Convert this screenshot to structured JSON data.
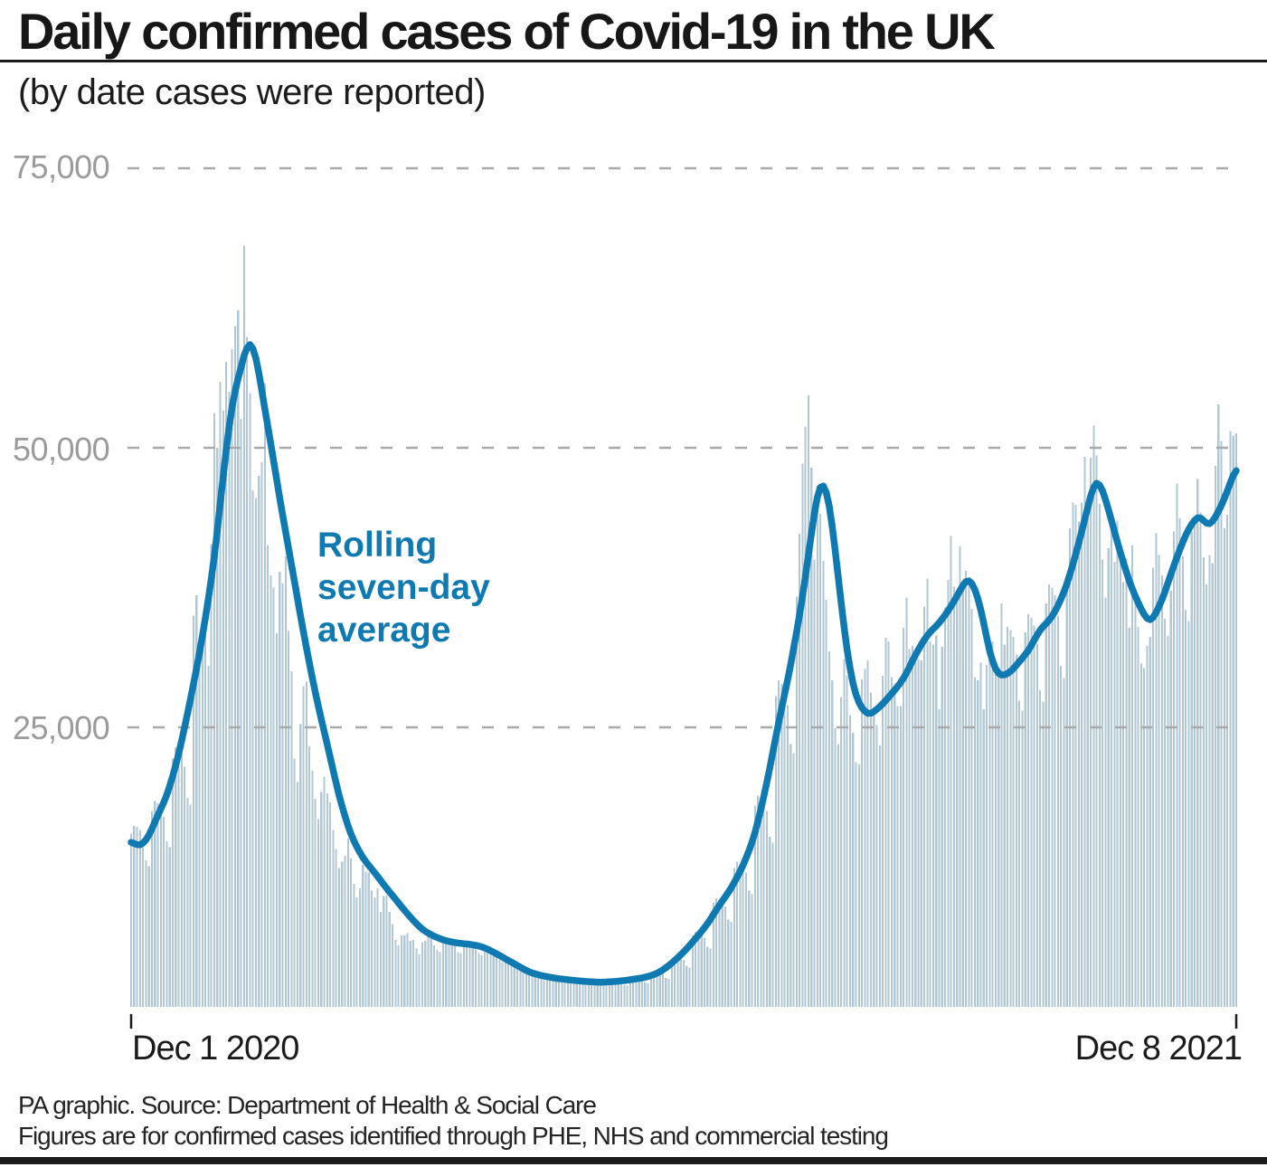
{
  "header": {
    "title": "Daily confirmed cases of Covid-19 in the UK",
    "subtitle": "(by date cases were reported)"
  },
  "annotation": {
    "text": "Rolling\nseven-day\naverage"
  },
  "axes": {
    "y_ticks": [
      "75,000",
      "50,000",
      "25,000"
    ],
    "x_start": "Dec 1 2020",
    "x_end": "Dec 8 2021"
  },
  "footer": {
    "line1": "PA graphic. Source: Department of Health & Social Care",
    "line2": "Figures are for confirmed cases identified through PHE, NHS and commercial testing"
  },
  "colors": {
    "bar": "#b2c7d5",
    "line": "#0f79b2",
    "grid": "#a9a9a9",
    "axis_text": "#999b9d",
    "text": "#1b1b1b"
  },
  "chart_data": {
    "type": "bar",
    "title": "Daily confirmed cases of Covid-19 in the UK",
    "subtitle": "(by date cases were reported)",
    "x_start_label": "Dec 1 2020",
    "x_end_label": "Dec 8 2021",
    "n_days": 373,
    "y_axis": {
      "min": 0,
      "top": 75000,
      "gridlines": [
        75000,
        50000,
        25000
      ],
      "grid_style": "dashed"
    },
    "series_names": [
      "Daily confirmed cases",
      "Rolling seven-day average"
    ],
    "daily_values": [
      15500,
      16200,
      16100,
      15800,
      15000,
      13100,
      12600,
      17500,
      18400,
      18200,
      17900,
      17000,
      14800,
      14300,
      22200,
      23200,
      23000,
      22600,
      21500,
      18700,
      18100,
      35000,
      36800,
      33000,
      32700,
      34700,
      30500,
      41400,
      53100,
      50000,
      55900,
      53300,
      57700,
      55000,
      58800,
      60900,
      62300,
      52600,
      68100,
      59900,
      54900,
      46200,
      45500,
      47500,
      48700,
      55800,
      41300,
      38600,
      37500,
      33400,
      38900,
      37900,
      40300,
      33600,
      30000,
      22200,
      20100,
      25300,
      28700,
      29100,
      23300,
      21100,
      18600,
      16800,
      19200,
      20600,
      19100,
      18300,
      15800,
      14100,
      12400,
      13000,
      13500,
      15100,
      13300,
      11000,
      9800,
      10600,
      12700,
      12100,
      12000,
      10400,
      9800,
      10600,
      8500,
      9900,
      10000,
      8500,
      7400,
      6000,
      5500,
      6400,
      6400,
      6600,
      5900,
      6000,
      5200,
      4700,
      5800,
      5900,
      6600,
      6600,
      5500,
      5100,
      4900,
      5800,
      6100,
      6100,
      5900,
      5700,
      4900,
      4800,
      5700,
      5900,
      5900,
      5800,
      5500,
      4800,
      4600,
      4900,
      5200,
      5100,
      5000,
      4800,
      4200,
      4000,
      4100,
      4300,
      4300,
      4200,
      4000,
      3500,
      3400,
      3000,
      3100,
      3100,
      3000,
      2900,
      2500,
      2400,
      2600,
      2800,
      2700,
      2700,
      2600,
      2200,
      2100,
      2500,
      2600,
      2600,
      2500,
      2400,
      2100,
      2000,
      2300,
      2400,
      2400,
      2400,
      2300,
      2000,
      1900,
      2300,
      2400,
      2400,
      2400,
      2300,
      2000,
      1900,
      2600,
      2700,
      2700,
      2600,
      2500,
      2200,
      2100,
      3100,
      3200,
      3200,
      3200,
      3000,
      2600,
      2500,
      4300,
      4500,
      4500,
      4400,
      4200,
      3700,
      3500,
      6400,
      6700,
      6600,
      6500,
      6200,
      5400,
      5200,
      9300,
      9700,
      9600,
      9500,
      9000,
      7800,
      7600,
      12400,
      13000,
      12800,
      12600,
      12000,
      10400,
      10100,
      18000,
      18900,
      18700,
      18400,
      17500,
      15200,
      14700,
      27800,
      29200,
      28900,
      28400,
      27000,
      23500,
      22700,
      36700,
      42300,
      48600,
      51900,
      54700,
      48200,
      40000,
      46600,
      44100,
      39900,
      36400,
      31800,
      29200,
      24900,
      23500,
      27700,
      31100,
      29600,
      26100,
      24500,
      21900,
      21700,
      29300,
      30200,
      31000,
      28100,
      26100,
      25200,
      23400,
      29600,
      33000,
      32700,
      29500,
      28000,
      26900,
      26900,
      33900,
      36600,
      32000,
      32300,
      31900,
      31100,
      31000,
      35800,
      38300,
      32700,
      32400,
      33200,
      26600,
      32200,
      35700,
      38200,
      42100,
      37600,
      37000,
      41200,
      37500,
      39000,
      38000,
      35600,
      29500,
      29200,
      30800,
      26600,
      30600,
      31500,
      32700,
      30100,
      29600,
      36100,
      32400,
      34000,
      33700,
      33100,
      31500,
      27400,
      26500,
      33500,
      35100,
      34800,
      34100,
      32500,
      28300,
      27300,
      36100,
      37800,
      37500,
      36800,
      35000,
      30500,
      29400,
      38500,
      42800,
      45100,
      44900,
      43400,
      45100,
      49200,
      43700,
      49100,
      52000,
      49300,
      45000,
      40000,
      36600,
      41000,
      43900,
      39800,
      43500,
      41300,
      38000,
      40100,
      33900,
      41300,
      37300,
      34000,
      30700,
      30300,
      32300,
      33100,
      39300,
      42400,
      40400,
      38600,
      34700,
      33200,
      37200,
      42500,
      46800,
      43700,
      40300,
      35500,
      34500,
      42500,
      43700,
      47200,
      44200,
      40200,
      37800,
      40400,
      39700,
      48400,
      53900,
      50600,
      42800,
      44000,
      51500,
      51100,
      51300
    ],
    "avg_points": [
      [
        0,
        14800
      ],
      [
        3,
        14300
      ],
      [
        6,
        15200
      ],
      [
        8,
        16600
      ],
      [
        12,
        18800
      ],
      [
        16,
        22500
      ],
      [
        20,
        27500
      ],
      [
        24,
        33000
      ],
      [
        28,
        40000
      ],
      [
        32,
        50000
      ],
      [
        34,
        54000
      ],
      [
        36,
        56600
      ],
      [
        37,
        56400
      ],
      [
        38,
        58800
      ],
      [
        40,
        59700
      ],
      [
        42,
        58500
      ],
      [
        44,
        55000
      ],
      [
        46,
        52000
      ],
      [
        50,
        45500
      ],
      [
        54,
        39500
      ],
      [
        58,
        33500
      ],
      [
        62,
        28000
      ],
      [
        66,
        23500
      ],
      [
        70,
        18800
      ],
      [
        74,
        15300
      ],
      [
        78,
        13300
      ],
      [
        82,
        12000
      ],
      [
        86,
        10600
      ],
      [
        90,
        9300
      ],
      [
        94,
        8000
      ],
      [
        98,
        6900
      ],
      [
        102,
        6300
      ],
      [
        106,
        5900
      ],
      [
        110,
        5700
      ],
      [
        114,
        5600
      ],
      [
        118,
        5400
      ],
      [
        122,
        4900
      ],
      [
        126,
        4300
      ],
      [
        130,
        3700
      ],
      [
        134,
        3100
      ],
      [
        138,
        2800
      ],
      [
        142,
        2600
      ],
      [
        146,
        2450
      ],
      [
        150,
        2350
      ],
      [
        154,
        2250
      ],
      [
        158,
        2200
      ],
      [
        162,
        2250
      ],
      [
        166,
        2350
      ],
      [
        170,
        2500
      ],
      [
        174,
        2700
      ],
      [
        178,
        3100
      ],
      [
        182,
        3900
      ],
      [
        186,
        4900
      ],
      [
        190,
        6100
      ],
      [
        194,
        7400
      ],
      [
        198,
        9100
      ],
      [
        202,
        10600
      ],
      [
        206,
        12600
      ],
      [
        210,
        15400
      ],
      [
        214,
        20000
      ],
      [
        218,
        25500
      ],
      [
        222,
        30500
      ],
      [
        226,
        36500
      ],
      [
        229,
        42500
      ],
      [
        232,
        47500
      ],
      [
        235,
        45500
      ],
      [
        238,
        38500
      ],
      [
        241,
        31500
      ],
      [
        244,
        27500
      ],
      [
        248,
        26000
      ],
      [
        252,
        26800
      ],
      [
        256,
        28000
      ],
      [
        260,
        29300
      ],
      [
        264,
        31500
      ],
      [
        268,
        33300
      ],
      [
        272,
        34300
      ],
      [
        276,
        35800
      ],
      [
        279,
        37200
      ],
      [
        281,
        38300
      ],
      [
        283,
        38200
      ],
      [
        286,
        35800
      ],
      [
        289,
        31500
      ],
      [
        292,
        29500
      ],
      [
        296,
        29900
      ],
      [
        299,
        30900
      ],
      [
        302,
        31800
      ],
      [
        306,
        33800
      ],
      [
        310,
        34800
      ],
      [
        314,
        37000
      ],
      [
        317,
        39500
      ],
      [
        320,
        42500
      ],
      [
        323,
        45800
      ],
      [
        325,
        47500
      ],
      [
        328,
        45500
      ],
      [
        332,
        41500
      ],
      [
        336,
        38000
      ],
      [
        340,
        35500
      ],
      [
        343,
        34200
      ],
      [
        347,
        36300
      ],
      [
        351,
        39500
      ],
      [
        355,
        42300
      ],
      [
        358,
        43600
      ],
      [
        360,
        44100
      ],
      [
        362,
        42900
      ],
      [
        364,
        43300
      ],
      [
        367,
        44800
      ],
      [
        370,
        46800
      ],
      [
        372,
        48400
      ]
    ]
  }
}
